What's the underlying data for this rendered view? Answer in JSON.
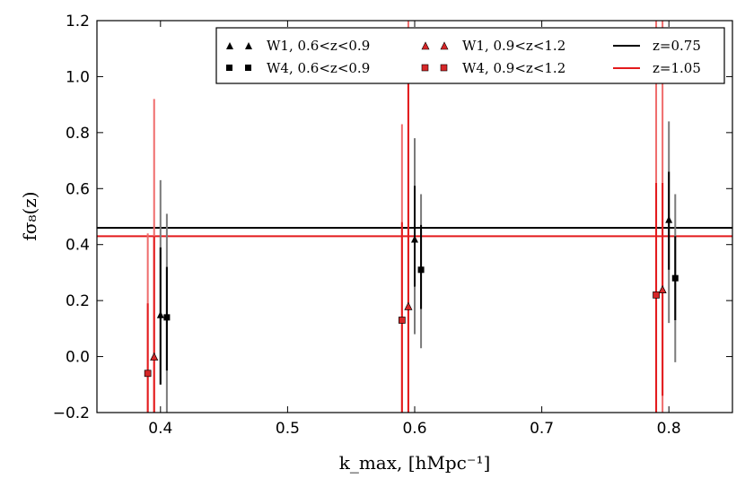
{
  "chart_data": {
    "type": "scatter",
    "xlabel": "k_max, [hMpc⁻¹]",
    "ylabel": "fσ₈(z)",
    "xlim": [
      0.35,
      0.85
    ],
    "ylim": [
      -0.2,
      1.2
    ],
    "x_ticks": [
      "0.4",
      "0.5",
      "0.6",
      "0.7",
      "0.8"
    ],
    "y_ticks": [
      "−0.2",
      "0.0",
      "0.2",
      "0.4",
      "0.6",
      "0.8",
      "1.0",
      "1.2"
    ],
    "legend_position": "top-right",
    "series": [
      {
        "name": "W1, 0.6<z<0.9",
        "marker": "triangle",
        "color": "#000000",
        "x": [
          0.4,
          0.6,
          0.8
        ],
        "y": [
          0.15,
          0.42,
          0.49
        ],
        "err_inner": [
          [
            -0.1,
            0.39
          ],
          [
            0.25,
            0.61
          ],
          [
            0.31,
            0.66
          ]
        ],
        "err_outer": [
          [
            -0.1,
            0.63
          ],
          [
            0.08,
            0.78
          ],
          [
            0.12,
            0.84
          ]
        ]
      },
      {
        "name": "W4, 0.6<z<0.9",
        "marker": "square",
        "color": "#000000",
        "x": [
          0.405,
          0.605,
          0.805
        ],
        "y": [
          0.14,
          0.31,
          0.28
        ],
        "err_inner": [
          [
            -0.05,
            0.32
          ],
          [
            0.17,
            0.47
          ],
          [
            0.13,
            0.43
          ]
        ],
        "err_outer": [
          [
            -0.2,
            0.51
          ],
          [
            0.03,
            0.58
          ],
          [
            -0.02,
            0.58
          ]
        ]
      },
      {
        "name": "W1, 0.9<z<1.2",
        "marker": "triangle",
        "color": "#d62728",
        "x": [
          0.395,
          0.595,
          0.795
        ],
        "y": [
          0.0,
          0.18,
          0.24
        ],
        "err_inner": [
          [
            -0.2,
            0.43
          ],
          [
            -0.2,
            0.99
          ],
          [
            -0.14,
            0.62
          ]
        ],
        "err_outer": [
          [
            -0.2,
            0.92
          ],
          [
            -0.2,
            1.2
          ],
          [
            -0.2,
            1.2
          ]
        ]
      },
      {
        "name": "W4, 0.9<z<1.2",
        "marker": "square",
        "color": "#d62728",
        "x": [
          0.39,
          0.59,
          0.79
        ],
        "y": [
          -0.06,
          0.13,
          0.22
        ],
        "err_inner": [
          [
            -0.2,
            0.19
          ],
          [
            -0.2,
            0.48
          ],
          [
            -0.2,
            0.62
          ]
        ],
        "err_outer": [
          [
            -0.2,
            0.44
          ],
          [
            -0.2,
            0.83
          ],
          [
            -0.2,
            1.2
          ]
        ]
      }
    ],
    "hlines": [
      {
        "name": "z=0.75",
        "y": 0.46,
        "color": "#000000"
      },
      {
        "name": "z=1.05",
        "y": 0.43,
        "color": "#e31a1c"
      }
    ]
  }
}
